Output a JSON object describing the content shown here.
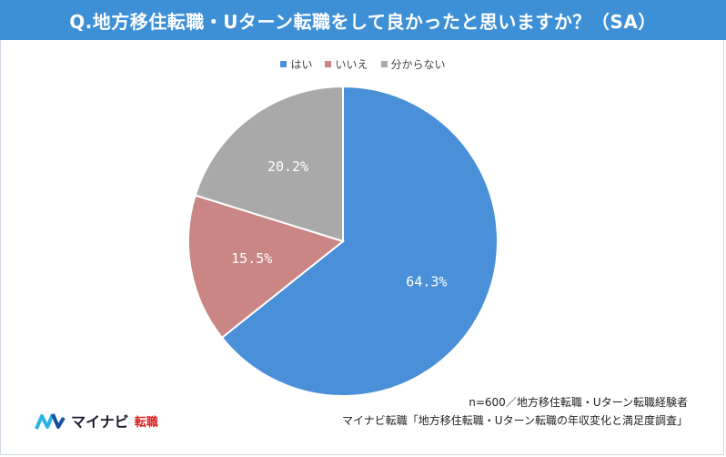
{
  "title": "Q.地方移住転職・Uターン転職をして良かったと思いますか？（SA）",
  "chart_data": {
    "type": "pie",
    "categories": [
      "はい",
      "いいえ",
      "分からない"
    ],
    "values": [
      64.3,
      15.5,
      20.2
    ],
    "value_labels": [
      "64.3%",
      "15.5%",
      "20.2%"
    ],
    "colors": [
      "#4a90d9",
      "#c98685",
      "#a9a9a9"
    ],
    "legend_position": "top-center"
  },
  "footnote": {
    "sample": "n=600／地方移住転職・Uターン転職経験者",
    "source": "マイナビ転職「地方移住転職・Uターン転職の年収変化と満足度調査」"
  },
  "logo": {
    "brand": "マイナビ",
    "accent": "転職",
    "brand_color": "#1a1a2e",
    "accent_color": "#e02020",
    "mark_colors": [
      "#2bb3e6",
      "#1a4fa0"
    ]
  }
}
